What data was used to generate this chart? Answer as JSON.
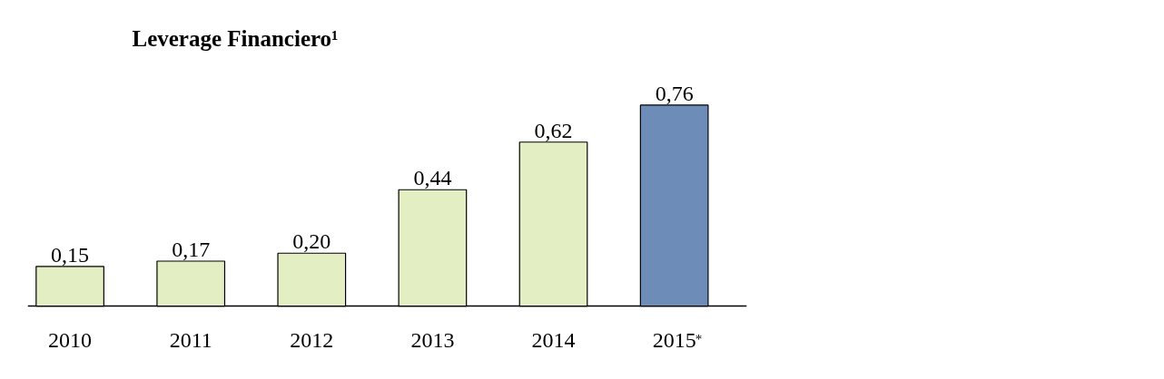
{
  "chart_data": {
    "type": "bar",
    "title": "Leverage Financiero¹",
    "categories": [
      "2010",
      "2011",
      "2012",
      "2013",
      "2014",
      "2015$^{*}$"
    ],
    "values": [
      0.15,
      0.17,
      0.2,
      0.44,
      0.62,
      0.76
    ],
    "value_labels": [
      "0,15",
      "0,17",
      "0,20",
      "0,44",
      "0,62",
      "0,76"
    ],
    "colors": [
      "#e3efc3",
      "#e3efc3",
      "#e3efc3",
      "#e3efc3",
      "#e3efc3",
      "#6d8cb8"
    ],
    "grid": false
  }
}
